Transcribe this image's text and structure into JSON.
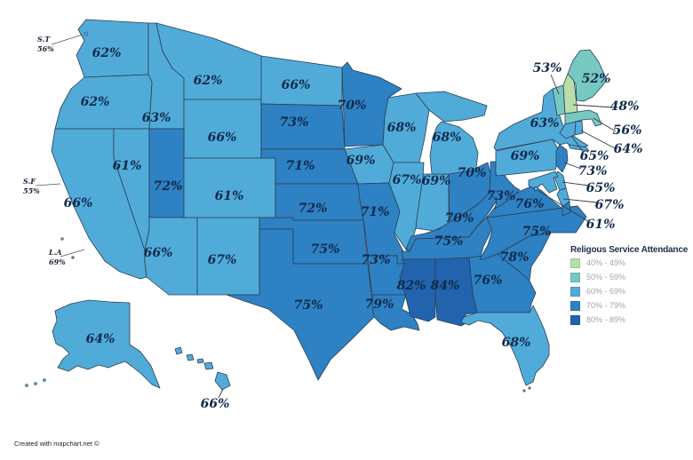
{
  "chart_data": {
    "type": "choropleth_map",
    "region": "United States",
    "title": "Religous Service Attendance",
    "unit": "percent",
    "states": [
      {
        "id": "WA",
        "name": "Washington",
        "display": "62%",
        "value": 62,
        "bucket": "60-69"
      },
      {
        "id": "OR",
        "name": "Oregon",
        "display": "62%",
        "value": 62,
        "bucket": "60-69"
      },
      {
        "id": "CA",
        "name": "California",
        "display": "66%",
        "value": 66,
        "bucket": "60-69"
      },
      {
        "id": "ID",
        "name": "Idaho",
        "display": "63%",
        "value": 63,
        "bucket": "60-69"
      },
      {
        "id": "NV",
        "name": "Nevada",
        "display": "61%",
        "value": 61,
        "bucket": "60-69"
      },
      {
        "id": "MT",
        "name": "Montana",
        "display": "62%",
        "value": 62,
        "bucket": "60-69"
      },
      {
        "id": "WY",
        "name": "Wyoming",
        "display": "66%",
        "value": 66,
        "bucket": "60-69"
      },
      {
        "id": "UT",
        "name": "Utah",
        "display": "72%",
        "value": 72,
        "bucket": "70-79"
      },
      {
        "id": "AZ",
        "name": "Arizona",
        "display": "66%",
        "value": 66,
        "bucket": "60-69"
      },
      {
        "id": "NM",
        "name": "New Mexico",
        "display": "67%",
        "value": 67,
        "bucket": "60-69"
      },
      {
        "id": "CO",
        "name": "Colorado",
        "display": "61%",
        "value": 61,
        "bucket": "60-69"
      },
      {
        "id": "ND",
        "name": "North Dakota",
        "display": "66%",
        "value": 66,
        "bucket": "60-69"
      },
      {
        "id": "SD",
        "name": "South Dakota",
        "display": "73%",
        "value": 73,
        "bucket": "70-79"
      },
      {
        "id": "NE",
        "name": "Nebraska",
        "display": "71%",
        "value": 71,
        "bucket": "70-79"
      },
      {
        "id": "KS",
        "name": "Kansas",
        "display": "72%",
        "value": 72,
        "bucket": "70-79"
      },
      {
        "id": "OK",
        "name": "Oklahoma",
        "display": "75%",
        "value": 75,
        "bucket": "70-79"
      },
      {
        "id": "TX",
        "name": "Texas",
        "display": "75%",
        "value": 75,
        "bucket": "70-79"
      },
      {
        "id": "MN",
        "name": "Minnesota",
        "display": "70%",
        "value": 70,
        "bucket": "70-79"
      },
      {
        "id": "IA",
        "name": "Iowa",
        "display": "69%",
        "value": 69,
        "bucket": "60-69"
      },
      {
        "id": "MO",
        "name": "Missouri",
        "display": "71%",
        "value": 71,
        "bucket": "70-79"
      },
      {
        "id": "AR",
        "name": "Arkansas",
        "display": "73%",
        "value": 73,
        "bucket": "70-79"
      },
      {
        "id": "LA",
        "name": "Louisiana",
        "display": "79%",
        "value": 79,
        "bucket": "70-79"
      },
      {
        "id": "WI",
        "name": "Wisconsin",
        "display": "68%",
        "value": 68,
        "bucket": "60-69"
      },
      {
        "id": "IL",
        "name": "Illinois",
        "display": "67%",
        "value": 67,
        "bucket": "60-69"
      },
      {
        "id": "IN",
        "name": "Indiana",
        "display": "69%",
        "value": 69,
        "bucket": "60-69"
      },
      {
        "id": "MI",
        "name": "Michigan",
        "display": "68%",
        "value": 68,
        "bucket": "60-69"
      },
      {
        "id": "OH",
        "name": "Ohio",
        "display": "70%",
        "value": 70,
        "bucket": "70-79"
      },
      {
        "id": "KY",
        "name": "Kentucky",
        "display": "70%",
        "value": 70,
        "bucket": "70-79"
      },
      {
        "id": "TN",
        "name": "Tennessee",
        "display": "75%",
        "value": 75,
        "bucket": "70-79"
      },
      {
        "id": "MS",
        "name": "Mississippi",
        "display": "82%",
        "value": 82,
        "bucket": "80-89"
      },
      {
        "id": "AL",
        "name": "Alabama",
        "display": "84%",
        "value": 84,
        "bucket": "80-89"
      },
      {
        "id": "GA",
        "name": "Georgia",
        "display": "76%",
        "value": 76,
        "bucket": "70-79"
      },
      {
        "id": "FL",
        "name": "Florida",
        "display": "68%",
        "value": 68,
        "bucket": "60-69"
      },
      {
        "id": "SC",
        "name": "South Carolina",
        "display": "78%",
        "value": 78,
        "bucket": "70-79"
      },
      {
        "id": "NC",
        "name": "North Carolina",
        "display": "75%",
        "value": 75,
        "bucket": "70-79"
      },
      {
        "id": "VA",
        "name": "Virginia",
        "display": "76%",
        "value": 76,
        "bucket": "70-79"
      },
      {
        "id": "WV",
        "name": "West Virginia",
        "display": "73%",
        "value": 73,
        "bucket": "70-79"
      },
      {
        "id": "MD",
        "name": "Maryland",
        "display": "67%",
        "value": 67,
        "bucket": "60-69"
      },
      {
        "id": "DE",
        "name": "Delaware",
        "display": "65%",
        "value": 65,
        "bucket": "60-69"
      },
      {
        "id": "DC",
        "name": "District of Columbia",
        "display": "61%",
        "value": 61,
        "bucket": "60-69"
      },
      {
        "id": "PA",
        "name": "Pennsylvania",
        "display": "69%",
        "value": 69,
        "bucket": "60-69"
      },
      {
        "id": "NJ",
        "name": "New Jersey",
        "display": "73%",
        "value": 73,
        "bucket": "70-79"
      },
      {
        "id": "NY",
        "name": "New York",
        "display": "63%",
        "value": 63,
        "bucket": "60-69"
      },
      {
        "id": "CT",
        "name": "Connecticut",
        "display": "65%",
        "value": 65,
        "bucket": "60-69"
      },
      {
        "id": "RI",
        "name": "Rhode Island",
        "display": "64%",
        "value": 64,
        "bucket": "60-69"
      },
      {
        "id": "MA",
        "name": "Massachusetts",
        "display": "56%",
        "value": 56,
        "bucket": "50-59"
      },
      {
        "id": "VT",
        "name": "Vermont",
        "display": "53%",
        "value": 53,
        "bucket": "50-59"
      },
      {
        "id": "NH",
        "name": "New Hampshire",
        "display": "48%",
        "value": 48,
        "bucket": "40-49"
      },
      {
        "id": "ME",
        "name": "Maine",
        "display": "52%",
        "value": 52,
        "bucket": "50-59"
      },
      {
        "id": "AK",
        "name": "Alaska",
        "display": "64%",
        "value": 64,
        "bucket": "60-69"
      },
      {
        "id": "HI",
        "name": "Hawaii",
        "display": "66%",
        "value": 66,
        "bucket": "60-69"
      }
    ]
  },
  "map": {
    "city_annotations": [
      {
        "id": "seattle",
        "label": "S.T",
        "value": "56%"
      },
      {
        "id": "san-francisco",
        "label": "S.F",
        "value": "55%"
      },
      {
        "id": "los-angeles",
        "label": "L.A",
        "value": "69%"
      }
    ]
  },
  "legend": {
    "title": "Religous Service Attendance",
    "items": [
      {
        "bucket": "40-49",
        "range": "40% - 49%",
        "color": "#b9dfa9"
      },
      {
        "bucket": "50-59",
        "range": "50% - 59%",
        "color": "#76c8c1"
      },
      {
        "bucket": "60-69",
        "range": "60% - 69%",
        "color": "#51abd8"
      },
      {
        "bucket": "70-79",
        "range": "70% - 79%",
        "color": "#2e81c2"
      },
      {
        "bucket": "80-89",
        "range": "80% - 89%",
        "color": "#2263ad"
      }
    ]
  },
  "footer": {
    "credit": "Created with mapchart.net ©"
  }
}
